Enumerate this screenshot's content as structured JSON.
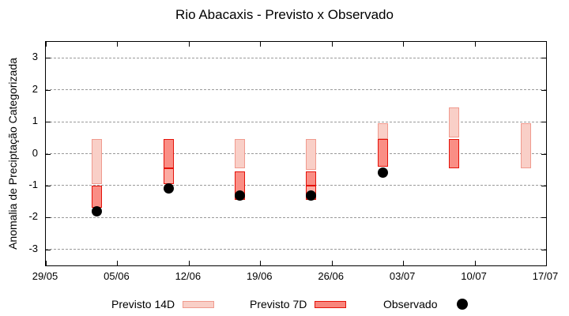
{
  "colors": {
    "p14_fill": "#f9cfc7",
    "p14_border": "#f09a8e",
    "p7_fill": "#fa8e85",
    "p7_border": "#e41209",
    "overlap_fill": "#fcaba2",
    "overlap_border": "#e41209",
    "legend7d_fill": "#f8857c",
    "dot": "#000000",
    "grid": "#9a9a9a",
    "axis": "#000000"
  },
  "chart_data": {
    "type": "bar",
    "title": "Rio Abacaxis - Previsto x Observado",
    "xlabel": "",
    "ylabel": "Anomalia de Preciptação Categorizada",
    "ylim": [
      -3.5,
      3.5
    ],
    "yticks": [
      -3,
      -2,
      -1,
      0,
      1,
      2,
      3
    ],
    "grid": "dashed horizontal at integer y values",
    "legend_position": "below plot, horizontal",
    "x_axis": {
      "tick_labels": [
        "29/05",
        "05/06",
        "12/06",
        "19/06",
        "26/06",
        "03/07",
        "10/07",
        "17/07"
      ],
      "tick_days": [
        0,
        7,
        14,
        21,
        28,
        35,
        42,
        49
      ],
      "span_days": 49
    },
    "legend": [
      {
        "label": "Previsto 14D",
        "style": "14d"
      },
      {
        "label": "Previsto 7D",
        "style": "7d"
      },
      {
        "label": "Observado",
        "style": "dot"
      }
    ],
    "series": [
      {
        "date": "03/06",
        "x_day": 5,
        "segments": [
          {
            "style": "14d",
            "hi": 0.45,
            "lo": -0.95
          },
          {
            "style": "7d",
            "hi": -1.0,
            "lo": -1.7
          }
        ],
        "observed": -1.8
      },
      {
        "date": "10/06",
        "x_day": 12,
        "segments": [
          {
            "style": "7d",
            "hi": 0.45,
            "lo": -0.45
          },
          {
            "style": "overlap",
            "hi": -0.45,
            "lo": -0.95
          }
        ],
        "observed": -1.1
      },
      {
        "date": "17/06",
        "x_day": 19,
        "segments": [
          {
            "style": "14d",
            "hi": 0.45,
            "lo": -0.45
          },
          {
            "style": "7d",
            "hi": -0.55,
            "lo": -1.45
          }
        ],
        "observed": -1.3
      },
      {
        "date": "24/06",
        "x_day": 26,
        "segments": [
          {
            "style": "14d",
            "hi": 0.45,
            "lo": -0.5
          },
          {
            "style": "7d",
            "hi": -0.55,
            "lo": -1.0
          },
          {
            "style": "overlap",
            "hi": -1.0,
            "lo": -1.45
          }
        ],
        "observed": -1.3
      },
      {
        "date": "01/07",
        "x_day": 33,
        "segments": [
          {
            "style": "14d",
            "hi": 0.95,
            "lo": 0.45
          },
          {
            "style": "7d",
            "hi": 0.45,
            "lo": -0.4
          }
        ],
        "observed": -0.6
      },
      {
        "date": "08/07",
        "x_day": 40,
        "segments": [
          {
            "style": "14d",
            "hi": 1.45,
            "lo": 0.5
          },
          {
            "style": "7d",
            "hi": 0.45,
            "lo": -0.45
          }
        ],
        "observed": null
      },
      {
        "date": "15/07",
        "x_day": 47,
        "segments": [
          {
            "style": "14d",
            "hi": 0.95,
            "lo": -0.45
          }
        ],
        "observed": null
      }
    ]
  }
}
